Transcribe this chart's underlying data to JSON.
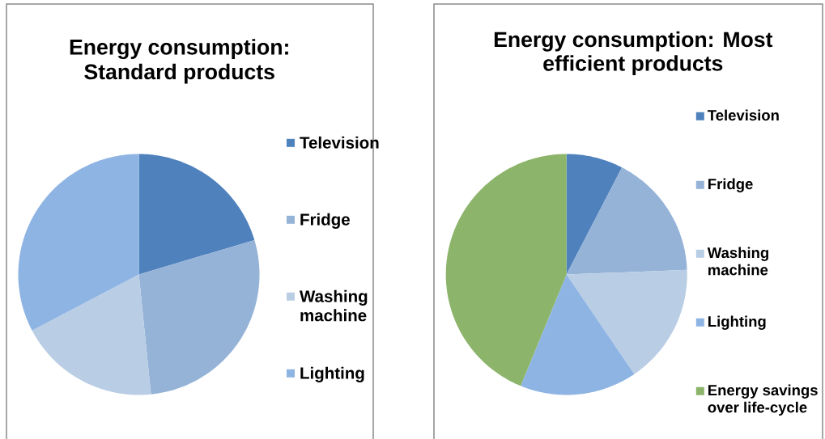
{
  "chart_data": [
    {
      "type": "pie",
      "title": "Energy consumption: Standard products",
      "categories": [
        "Television",
        "Fridge",
        "Washing machine",
        "Lighting"
      ],
      "values": [
        20.4,
        28.0,
        18.9,
        32.7
      ],
      "colors": [
        "#4f81bd",
        "#95b3d7",
        "#b9cde5",
        "#8eb4e3"
      ],
      "legend": "right"
    },
    {
      "type": "pie",
      "title": "Energy consumption: Most efficient products",
      "categories": [
        "Television",
        "Fridge",
        "Washing machine",
        "Lighting",
        "Energy savings over life-cycle"
      ],
      "values": [
        7.6,
        16.8,
        16.1,
        15.7,
        43.8
      ],
      "colors": [
        "#4f81bd",
        "#95b3d7",
        "#b9cde5",
        "#8eb4e3",
        "#8cb46a"
      ],
      "legend": "right"
    }
  ]
}
